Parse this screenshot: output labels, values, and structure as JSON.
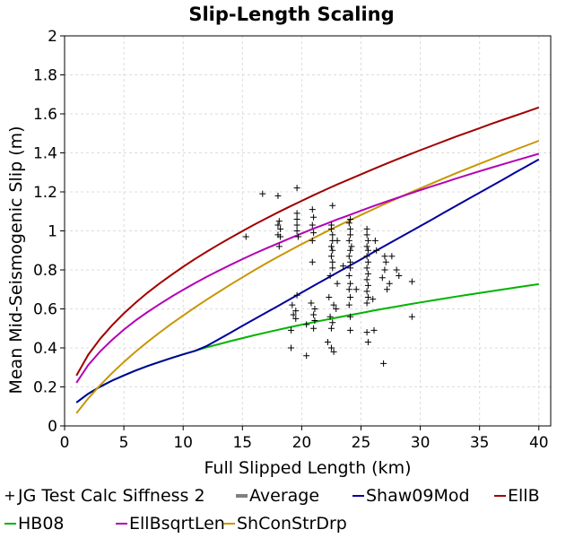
{
  "chart_data": {
    "type": "line",
    "title": "Slip-Length Scaling",
    "xlabel": "Full Slipped Length (km)",
    "ylabel": "Mean Mid-Seismogenic Slip (m)",
    "xlim": [
      0,
      41
    ],
    "ylim": [
      0,
      2
    ],
    "xticks": [
      "0",
      "5",
      "10",
      "15",
      "20",
      "25",
      "30",
      "35",
      "40"
    ],
    "yticks": [
      "0",
      "0.2",
      "0.4",
      "0.6",
      "0.8",
      "1",
      "1.2",
      "1.4",
      "1.6",
      "1.8",
      "2"
    ],
    "grid": true,
    "legend_position": "bottom",
    "series": [
      {
        "name": "JG Test Calc Siffness 2",
        "kind": "scatter",
        "marker": "+",
        "color": "#000000",
        "points": [
          [
            16.7,
            1.19
          ],
          [
            18.0,
            1.18
          ],
          [
            19.6,
            1.22
          ],
          [
            18.1,
            1.05
          ],
          [
            18.0,
            1.03
          ],
          [
            18.2,
            1.01
          ],
          [
            18.0,
            0.98
          ],
          [
            18.2,
            0.97
          ],
          [
            18.1,
            0.92
          ],
          [
            15.3,
            0.97
          ],
          [
            19.6,
            1.09
          ],
          [
            19.6,
            1.06
          ],
          [
            19.6,
            1.03
          ],
          [
            19.6,
            1.0
          ],
          [
            19.7,
            0.97
          ],
          [
            20.9,
            1.11
          ],
          [
            21.0,
            1.07
          ],
          [
            20.9,
            1.03
          ],
          [
            21.0,
            0.99
          ],
          [
            20.9,
            0.95
          ],
          [
            20.9,
            0.84
          ],
          [
            22.6,
            1.13
          ],
          [
            22.5,
            1.03
          ],
          [
            22.5,
            1.01
          ],
          [
            22.6,
            0.98
          ],
          [
            22.6,
            0.95
          ],
          [
            22.5,
            0.92
          ],
          [
            22.6,
            0.9
          ],
          [
            22.5,
            0.87
          ],
          [
            22.6,
            0.84
          ],
          [
            22.6,
            0.81
          ],
          [
            22.4,
            0.77
          ],
          [
            24.1,
            1.06
          ],
          [
            24.0,
            1.04
          ],
          [
            24.1,
            1.01
          ],
          [
            24.1,
            0.98
          ],
          [
            24.0,
            0.95
          ],
          [
            24.2,
            0.92
          ],
          [
            24.1,
            0.9
          ],
          [
            24.0,
            0.87
          ],
          [
            24.1,
            0.84
          ],
          [
            24.1,
            0.81
          ],
          [
            24.0,
            0.77
          ],
          [
            24.1,
            0.73
          ],
          [
            24.0,
            0.7
          ],
          [
            24.1,
            0.66
          ],
          [
            24.0,
            0.62
          ],
          [
            24.1,
            0.56
          ],
          [
            25.5,
            1.01
          ],
          [
            25.5,
            0.98
          ],
          [
            25.6,
            0.95
          ],
          [
            25.5,
            0.92
          ],
          [
            25.6,
            0.9
          ],
          [
            25.5,
            0.87
          ],
          [
            25.6,
            0.84
          ],
          [
            25.5,
            0.81
          ],
          [
            25.6,
            0.78
          ],
          [
            25.5,
            0.75
          ],
          [
            25.6,
            0.72
          ],
          [
            25.5,
            0.69
          ],
          [
            25.6,
            0.66
          ],
          [
            25.5,
            0.63
          ],
          [
            26.2,
            0.95
          ],
          [
            26.3,
            0.9
          ],
          [
            27.0,
            0.87
          ],
          [
            27.1,
            0.84
          ],
          [
            27.0,
            0.8
          ],
          [
            27.4,
            0.73
          ],
          [
            27.2,
            0.7
          ],
          [
            27.6,
            0.87
          ],
          [
            28.0,
            0.8
          ],
          [
            28.2,
            0.77
          ],
          [
            29.3,
            0.74
          ],
          [
            29.3,
            0.56
          ],
          [
            19.2,
            0.62
          ],
          [
            19.5,
            0.59
          ],
          [
            19.3,
            0.57
          ],
          [
            19.5,
            0.55
          ],
          [
            19.6,
            0.67
          ],
          [
            20.4,
            0.52
          ],
          [
            20.8,
            0.63
          ],
          [
            21.1,
            0.6
          ],
          [
            21.0,
            0.57
          ],
          [
            21.1,
            0.54
          ],
          [
            21.0,
            0.5
          ],
          [
            22.3,
            0.66
          ],
          [
            22.7,
            0.62
          ],
          [
            22.4,
            0.56
          ],
          [
            22.6,
            0.53
          ],
          [
            22.5,
            0.5
          ],
          [
            22.2,
            0.43
          ],
          [
            22.5,
            0.4
          ],
          [
            22.7,
            0.38
          ],
          [
            24.1,
            0.49
          ],
          [
            25.5,
            0.48
          ],
          [
            25.6,
            0.43
          ],
          [
            26.1,
            0.49
          ],
          [
            26.9,
            0.32
          ],
          [
            19.1,
            0.49
          ],
          [
            19.1,
            0.4
          ],
          [
            20.4,
            0.36
          ],
          [
            23.0,
            0.95
          ],
          [
            23.5,
            0.82
          ],
          [
            24.6,
            0.7
          ],
          [
            26.0,
            0.65
          ],
          [
            23.0,
            0.73
          ],
          [
            22.9,
            0.6
          ],
          [
            26.8,
            0.76
          ]
        ]
      },
      {
        "name": "Average",
        "kind": "line",
        "color": "#808080",
        "x": [],
        "y": []
      },
      {
        "name": "Shaw09Mod",
        "kind": "line",
        "color": "#00009c",
        "x": [
          1,
          2,
          3,
          4,
          5,
          6,
          7,
          8,
          9,
          10,
          11,
          12,
          13,
          14,
          15,
          16,
          17,
          18,
          19,
          20,
          21,
          22,
          23,
          24,
          25,
          26,
          27,
          28,
          29,
          30,
          31,
          32,
          33,
          34,
          35,
          36,
          37,
          38,
          39,
          40
        ],
        "y": [
          0.12,
          0.165,
          0.201,
          0.232,
          0.259,
          0.284,
          0.307,
          0.328,
          0.348,
          0.367,
          0.385,
          0.41,
          0.444,
          0.478,
          0.513,
          0.547,
          0.581,
          0.615,
          0.649,
          0.684,
          0.718,
          0.752,
          0.786,
          0.82,
          0.854,
          0.889,
          0.923,
          0.957,
          0.991,
          1.025,
          1.059,
          1.094,
          1.128,
          1.162,
          1.196,
          1.23,
          1.264,
          1.299,
          1.333,
          1.367
        ]
      },
      {
        "name": "EllB",
        "kind": "line",
        "color": "#a00000",
        "x": [
          1,
          2,
          3,
          4,
          5,
          6,
          7,
          8,
          9,
          10,
          11,
          12,
          13,
          14,
          15,
          16,
          17,
          18,
          19,
          20,
          21,
          22,
          23,
          24,
          25,
          26,
          27,
          28,
          29,
          30,
          31,
          32,
          33,
          34,
          35,
          36,
          37,
          38,
          39,
          40
        ],
        "y": [
          0.258,
          0.365,
          0.447,
          0.516,
          0.577,
          0.632,
          0.683,
          0.73,
          0.774,
          0.816,
          0.856,
          0.894,
          0.93,
          0.965,
          0.999,
          1.032,
          1.064,
          1.095,
          1.125,
          1.154,
          1.183,
          1.211,
          1.238,
          1.264,
          1.29,
          1.316,
          1.341,
          1.366,
          1.39,
          1.414,
          1.437,
          1.46,
          1.483,
          1.505,
          1.527,
          1.549,
          1.57,
          1.591,
          1.612,
          1.633
        ]
      },
      {
        "name": "HB08",
        "kind": "line",
        "color": "#00b400",
        "x": [
          1,
          2,
          3,
          4,
          5,
          6,
          7,
          8,
          9,
          10,
          11,
          12,
          13,
          14,
          15,
          16,
          17,
          18,
          19,
          20,
          21,
          22,
          23,
          24,
          25,
          26,
          27,
          28,
          29,
          30,
          31,
          32,
          33,
          34,
          35,
          36,
          37,
          38,
          39,
          40
        ],
        "y": [
          0.12,
          0.165,
          0.201,
          0.232,
          0.259,
          0.284,
          0.307,
          0.328,
          0.348,
          0.367,
          0.385,
          0.403,
          0.419,
          0.435,
          0.45,
          0.465,
          0.479,
          0.493,
          0.506,
          0.519,
          0.532,
          0.544,
          0.556,
          0.568,
          0.579,
          0.591,
          0.602,
          0.612,
          0.623,
          0.633,
          0.643,
          0.653,
          0.663,
          0.672,
          0.682,
          0.691,
          0.7,
          0.709,
          0.718,
          0.727
        ]
      },
      {
        "name": "EllBsqrtLen",
        "kind": "line",
        "color": "#b400b4",
        "x": [
          1,
          2,
          3,
          4,
          5,
          6,
          7,
          8,
          9,
          10,
          11,
          12,
          13,
          14,
          15,
          16,
          17,
          18,
          19,
          20,
          21,
          22,
          23,
          24,
          25,
          26,
          27,
          28,
          29,
          30,
          31,
          32,
          33,
          34,
          35,
          36,
          37,
          38,
          39,
          40
        ],
        "y": [
          0.221,
          0.312,
          0.382,
          0.441,
          0.494,
          0.541,
          0.584,
          0.624,
          0.662,
          0.698,
          0.732,
          0.765,
          0.796,
          0.826,
          0.855,
          0.883,
          0.91,
          0.936,
          0.962,
          0.987,
          1.012,
          1.035,
          1.059,
          1.081,
          1.104,
          1.126,
          1.147,
          1.168,
          1.189,
          1.209,
          1.229,
          1.248,
          1.268,
          1.287,
          1.306,
          1.324,
          1.342,
          1.36,
          1.378,
          1.396
        ]
      },
      {
        "name": "ShConStrDrp",
        "kind": "line",
        "color": "#c89600",
        "x": [
          1,
          2,
          3,
          4,
          5,
          6,
          7,
          8,
          9,
          10,
          11,
          12,
          13,
          14,
          15,
          16,
          17,
          18,
          19,
          20,
          21,
          22,
          23,
          24,
          25,
          26,
          27,
          28,
          29,
          30,
          31,
          32,
          33,
          34,
          35,
          36,
          37,
          38,
          39,
          40
        ],
        "y": [
          0.065,
          0.141,
          0.209,
          0.271,
          0.328,
          0.381,
          0.431,
          0.478,
          0.523,
          0.566,
          0.608,
          0.648,
          0.687,
          0.725,
          0.762,
          0.798,
          0.833,
          0.867,
          0.9,
          0.932,
          0.963,
          0.994,
          1.024,
          1.053,
          1.082,
          1.11,
          1.138,
          1.165,
          1.192,
          1.218,
          1.244,
          1.27,
          1.295,
          1.32,
          1.344,
          1.368,
          1.392,
          1.416,
          1.439,
          1.462
        ]
      }
    ]
  }
}
